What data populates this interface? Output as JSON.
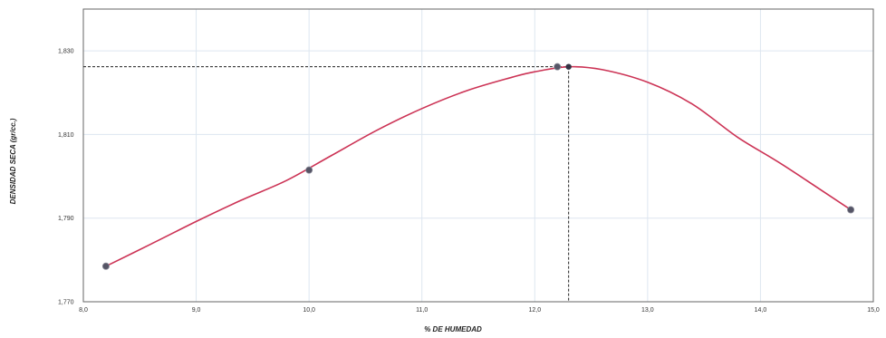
{
  "chart_data": {
    "type": "line",
    "xlabel": "% DE HUMEDAD",
    "ylabel": "DENSIDAD SECA (gr/cc.)",
    "xlim": [
      8.0,
      15.0
    ],
    "ylim": [
      1.77,
      1.84
    ],
    "x_ticks": [
      "8,0",
      "9,0",
      "10,0",
      "11,0",
      "12,0",
      "13,0",
      "14,0",
      "15,0"
    ],
    "y_ticks": [
      "1,770",
      "1,790",
      "1,810",
      "1,830"
    ],
    "x_tick_values": [
      8,
      9,
      10,
      11,
      12,
      13,
      14,
      15
    ],
    "y_tick_values": [
      1.77,
      1.79,
      1.81,
      1.83
    ],
    "grid": true,
    "legend": "none",
    "series": [
      {
        "type": "points",
        "x": [
          8.2,
          10.0,
          12.2,
          14.8
        ],
        "y": [
          1.7785,
          1.8015,
          1.8262,
          1.792
        ]
      },
      {
        "type": "fitted-curve",
        "x": [
          8.2,
          8.6,
          9.0,
          9.4,
          9.8,
          10.2,
          10.6,
          11.0,
          11.4,
          11.8,
          12.0,
          12.3,
          12.6,
          13.0,
          13.4,
          13.8,
          14.2,
          14.8
        ],
        "y": [
          1.7785,
          1.7838,
          1.7892,
          1.7943,
          1.799,
          1.805,
          1.811,
          1.8162,
          1.8205,
          1.8237,
          1.825,
          1.8262,
          1.8255,
          1.8225,
          1.8172,
          1.8093,
          1.8027,
          1.792
        ]
      }
    ],
    "annotations": {
      "optimum_point": {
        "x": 12.3,
        "y": 1.8262
      }
    },
    "colors": {
      "curve": "#cc3355",
      "point": "#555566",
      "guide": "#222222",
      "grid": "#dde6f0",
      "frame": "#666666"
    }
  }
}
